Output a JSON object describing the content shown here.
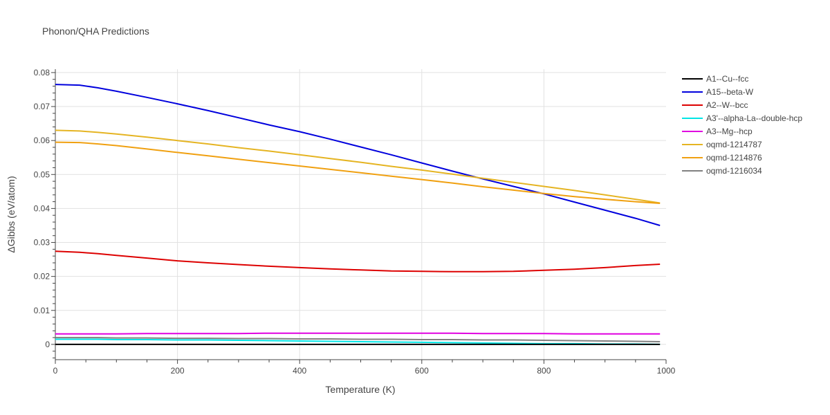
{
  "chart_data": {
    "type": "line",
    "title": "Phonon/QHA Predictions",
    "xlabel": "Temperature (K)",
    "ylabel": "ΔGibbs (eV/atom)",
    "xlim": [
      0,
      1000
    ],
    "ylim": [
      -0.0045,
      0.081
    ],
    "xticks": [
      0,
      200,
      400,
      600,
      800,
      1000
    ],
    "xtick_labels": [
      "0",
      "200",
      "400",
      "600",
      "800",
      "1000"
    ],
    "yticks": [
      0,
      0.01,
      0.02,
      0.03,
      0.04,
      0.05,
      0.06,
      0.07,
      0.08
    ],
    "ytick_labels": [
      "0",
      "0.01",
      "0.02",
      "0.03",
      "0.04",
      "0.05",
      "0.06",
      "0.07",
      "0.08"
    ],
    "grid": true,
    "legend_position": "right",
    "x": [
      0,
      40,
      70,
      100,
      150,
      200,
      250,
      300,
      350,
      400,
      450,
      500,
      550,
      600,
      650,
      700,
      750,
      800,
      850,
      900,
      950,
      990
    ],
    "series": [
      {
        "name": "A1--Cu--fcc",
        "color": "#000000",
        "values": [
          0,
          0,
          0,
          0,
          0,
          0,
          0,
          0,
          0,
          0,
          0,
          0,
          0,
          0,
          0,
          0,
          0,
          0,
          0,
          0,
          0,
          0
        ]
      },
      {
        "name": "A15--beta-W",
        "color": "#0000dd",
        "values": [
          0.0765,
          0.0763,
          0.0755,
          0.0745,
          0.0727,
          0.0708,
          0.0688,
          0.0667,
          0.0646,
          0.0626,
          0.0604,
          0.0581,
          0.0558,
          0.0534,
          0.051,
          0.0487,
          0.0465,
          0.0443,
          0.0419,
          0.0395,
          0.0371,
          0.035
        ]
      },
      {
        "name": "A2--W--bcc",
        "color": "#dd0000",
        "values": [
          0.0274,
          0.0271,
          0.0267,
          0.0262,
          0.0254,
          0.0246,
          0.024,
          0.0235,
          0.023,
          0.0226,
          0.0222,
          0.0219,
          0.0216,
          0.0215,
          0.0214,
          0.0214,
          0.0215,
          0.0218,
          0.0221,
          0.0226,
          0.0232,
          0.0236
        ]
      },
      {
        "name": "A3'--alpha-La--double-hcp",
        "color": "#00e5e5",
        "values": [
          0.0015,
          0.0015,
          0.0015,
          0.0014,
          0.0014,
          0.0013,
          0.0013,
          0.0012,
          0.0011,
          0.001,
          0.0009,
          0.0008,
          0.0007,
          0.0006,
          0.0005,
          0.0004,
          0.0003,
          0.0002,
          0.0002,
          0.0001,
          0.0001,
          0.0
        ]
      },
      {
        "name": "A3--Mg--hcp",
        "color": "#e000e0",
        "values": [
          0.0031,
          0.0031,
          0.0031,
          0.0031,
          0.0032,
          0.0032,
          0.0032,
          0.0032,
          0.0033,
          0.0033,
          0.0033,
          0.0033,
          0.0033,
          0.0033,
          0.0033,
          0.0032,
          0.0032,
          0.0032,
          0.0031,
          0.0031,
          0.0031,
          0.0031
        ]
      },
      {
        "name": "oqmd-1214787",
        "color": "#e5b422",
        "values": [
          0.063,
          0.0628,
          0.0624,
          0.0619,
          0.061,
          0.06,
          0.059,
          0.0579,
          0.0569,
          0.0558,
          0.0547,
          0.0536,
          0.0524,
          0.0513,
          0.0501,
          0.0489,
          0.0477,
          0.0465,
          0.0453,
          0.044,
          0.0427,
          0.0416
        ]
      },
      {
        "name": "oqmd-1214876",
        "color": "#f0a010",
        "values": [
          0.0595,
          0.0594,
          0.059,
          0.0585,
          0.0575,
          0.0565,
          0.0555,
          0.0545,
          0.0535,
          0.0525,
          0.0515,
          0.0505,
          0.0495,
          0.0485,
          0.0475,
          0.0464,
          0.0454,
          0.0444,
          0.0435,
          0.0427,
          0.042,
          0.0415
        ]
      },
      {
        "name": "oqmd-1216034",
        "color": "#808080",
        "values": [
          0.002,
          0.002,
          0.002,
          0.0019,
          0.0019,
          0.0018,
          0.0018,
          0.0017,
          0.0017,
          0.0016,
          0.0016,
          0.0015,
          0.0015,
          0.0014,
          0.0014,
          0.0013,
          0.0013,
          0.0012,
          0.0011,
          0.001,
          0.0009,
          0.0008
        ]
      }
    ]
  }
}
